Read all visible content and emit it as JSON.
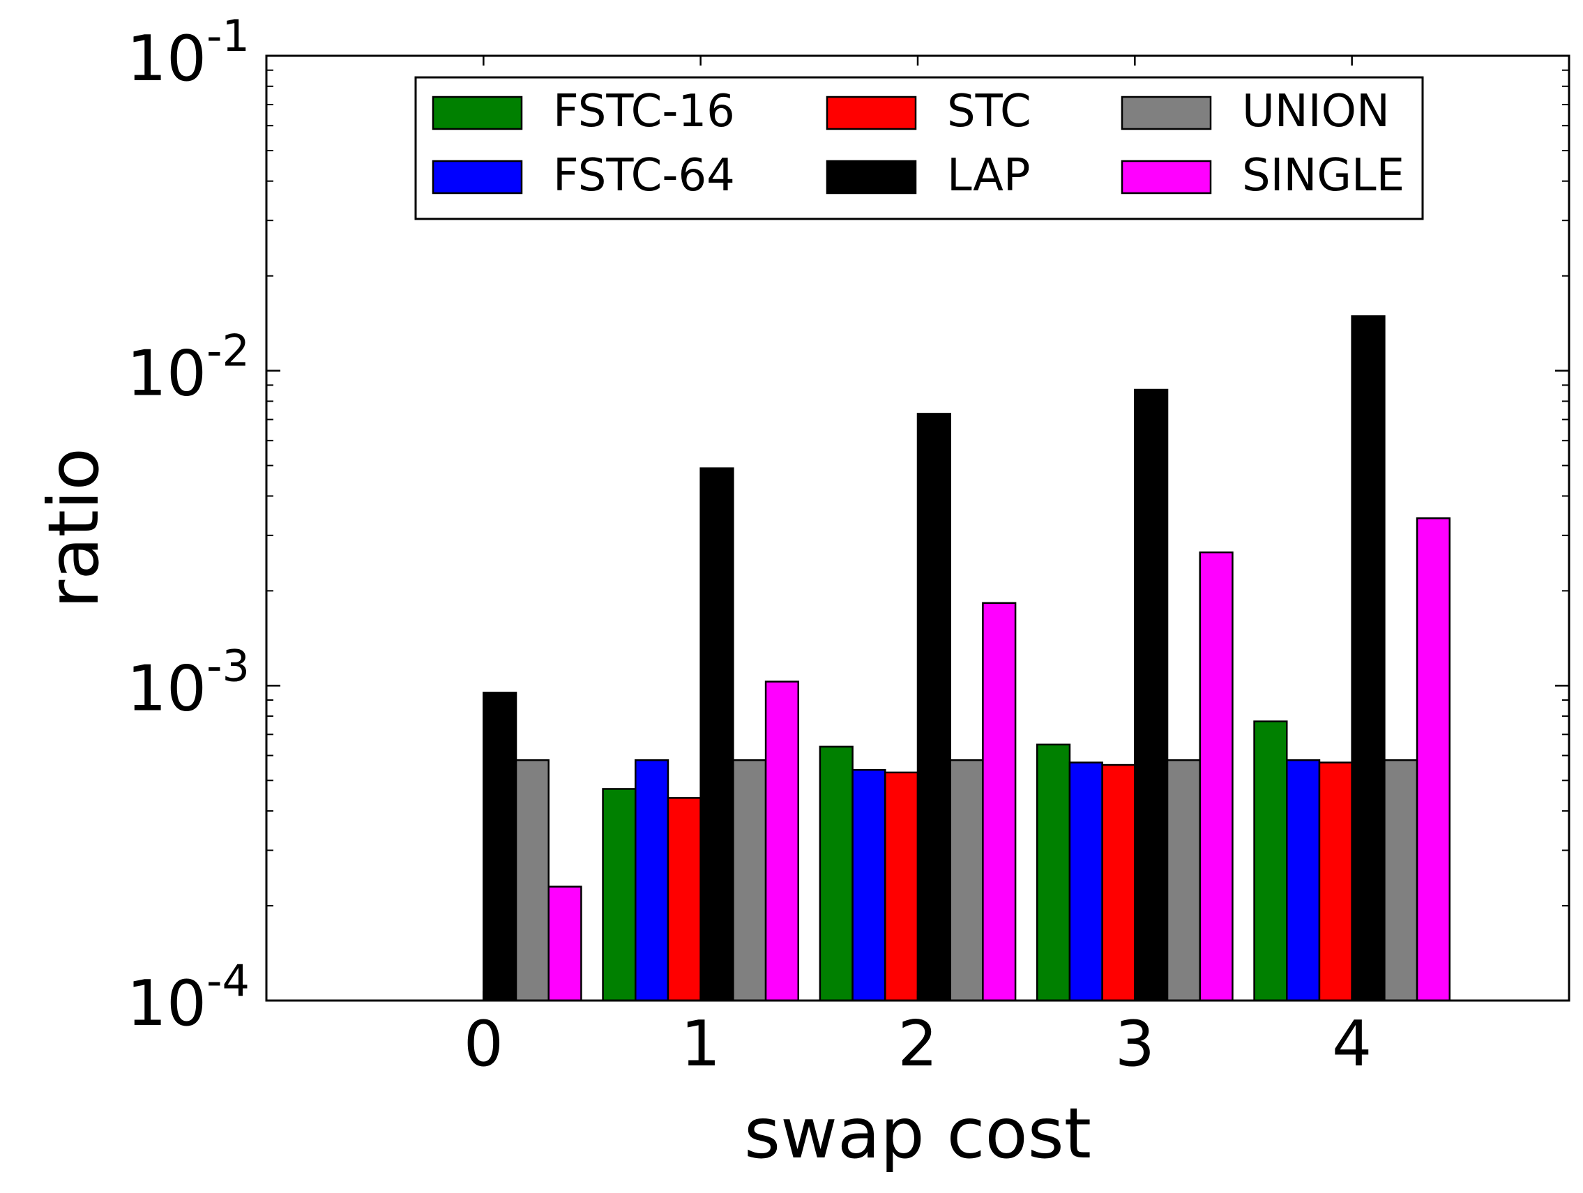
{
  "chart_data": {
    "type": "bar",
    "title": "",
    "xlabel": "swap cost",
    "ylabel": "ratio",
    "yscale": "log",
    "ylim": [
      0.0001,
      0.1
    ],
    "yticks": [
      {
        "value": 0.0001,
        "base": "10",
        "exp": "-4"
      },
      {
        "value": 0.001,
        "base": "10",
        "exp": "-3"
      },
      {
        "value": 0.01,
        "base": "10",
        "exp": "-2"
      },
      {
        "value": 0.1,
        "base": "10",
        "exp": "-1"
      }
    ],
    "xlim": [
      -1,
      5
    ],
    "categories": [
      "0",
      "1",
      "2",
      "3",
      "4"
    ],
    "grid": false,
    "legend_position": "top-center",
    "legend_columns": 3,
    "series": [
      {
        "name": "FSTC-16",
        "color": "#008000",
        "values": [
          null,
          0.00047,
          0.00064,
          0.00065,
          0.00077
        ]
      },
      {
        "name": "FSTC-64",
        "color": "#0000ff",
        "values": [
          null,
          0.00058,
          0.00054,
          0.00057,
          0.00058
        ]
      },
      {
        "name": "STC",
        "color": "#ff0000",
        "values": [
          null,
          0.00044,
          0.00053,
          0.00056,
          0.00057
        ]
      },
      {
        "name": "LAP",
        "color": "#000000",
        "values": [
          0.00095,
          0.0049,
          0.0073,
          0.0087,
          0.0149
        ]
      },
      {
        "name": "UNION",
        "color": "#808080",
        "values": [
          0.00058,
          0.00058,
          0.00058,
          0.00058,
          0.00058
        ]
      },
      {
        "name": "SINGLE",
        "color": "#ff00ff",
        "values": [
          0.00023,
          0.00103,
          0.00183,
          0.00265,
          0.0034
        ]
      }
    ]
  }
}
